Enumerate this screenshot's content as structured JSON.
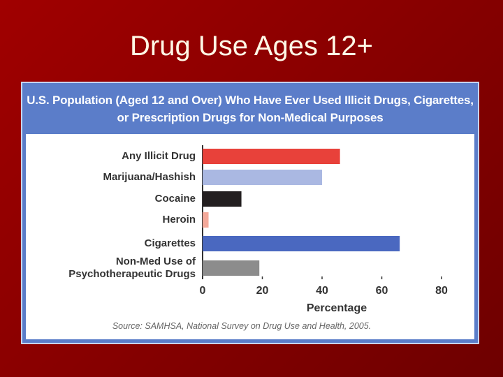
{
  "slide_title": "Drug Use Ages 12+",
  "chart_data": {
    "type": "hbar",
    "title": "U.S. Population (Aged 12 and Over) Who Have Ever Used Illicit Drugs, Cigarettes, or Prescription Drugs for Non-Medical Purposes",
    "categories": [
      "Any Illicit Drug",
      "Marijuana/Hashish",
      "Cocaine",
      "Heroin",
      "Cigarettes",
      "Non-Med Use of Psychotherapeutic Drugs"
    ],
    "values": [
      46,
      40,
      13,
      2,
      66,
      19
    ],
    "colors": [
      "#e8413a",
      "#aab8e2",
      "#231f20",
      "#f4a99a",
      "#4a68c0",
      "#8c8c8c"
    ],
    "xlim": [
      0,
      80
    ],
    "xticks": [
      0,
      20,
      40,
      60,
      80
    ],
    "xlabel": "Percentage",
    "source": "Source: SAMHSA, National Survey on Drug Use and Health, 2005."
  }
}
